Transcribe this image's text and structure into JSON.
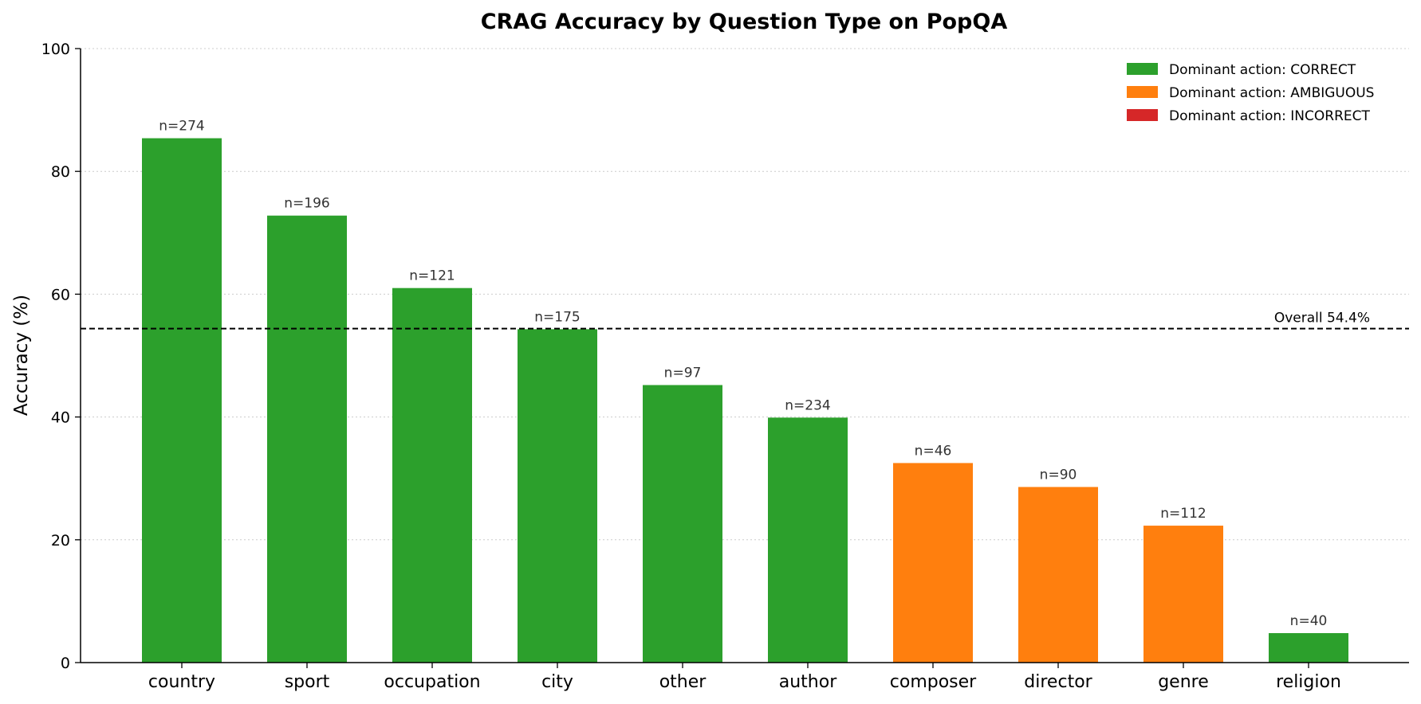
{
  "chart_data": {
    "type": "bar",
    "title": "CRAG Accuracy by Question Type on PopQA",
    "xlabel": "",
    "ylabel": "Accuracy (%)",
    "ylim": [
      0,
      100
    ],
    "yticks": [
      "0",
      "20",
      "40",
      "60",
      "80",
      "100"
    ],
    "grid": "horizontal dotted",
    "legend_position": "top-right",
    "categories": [
      "country",
      "sport",
      "occupation",
      "city",
      "other",
      "author",
      "composer",
      "director",
      "genre",
      "religion"
    ],
    "values": [
      85.4,
      72.8,
      61.0,
      54.3,
      45.2,
      39.9,
      32.5,
      28.6,
      22.3,
      4.8
    ],
    "counts": [
      "n=274",
      "n=196",
      "n=121",
      "n=175",
      "n=97",
      "n=234",
      "n=46",
      "n=90",
      "n=112",
      "n=40"
    ],
    "dominant_action": [
      "CORRECT",
      "CORRECT",
      "CORRECT",
      "CORRECT",
      "CORRECT",
      "CORRECT",
      "AMBIGUOUS",
      "AMBIGUOUS",
      "AMBIGUOUS",
      "CORRECT"
    ],
    "legend": [
      {
        "key": "CORRECT",
        "label": "Dominant action: CORRECT",
        "color": "#2ca02c"
      },
      {
        "key": "AMBIGUOUS",
        "label": "Dominant action: AMBIGUOUS",
        "color": "#ff7f0e"
      },
      {
        "key": "INCORRECT",
        "label": "Dominant action: INCORRECT",
        "color": "#d62728"
      }
    ],
    "reference_line": {
      "value": 54.4,
      "label": "Overall 54.4%",
      "style": "dashed",
      "color": "#000000"
    }
  }
}
